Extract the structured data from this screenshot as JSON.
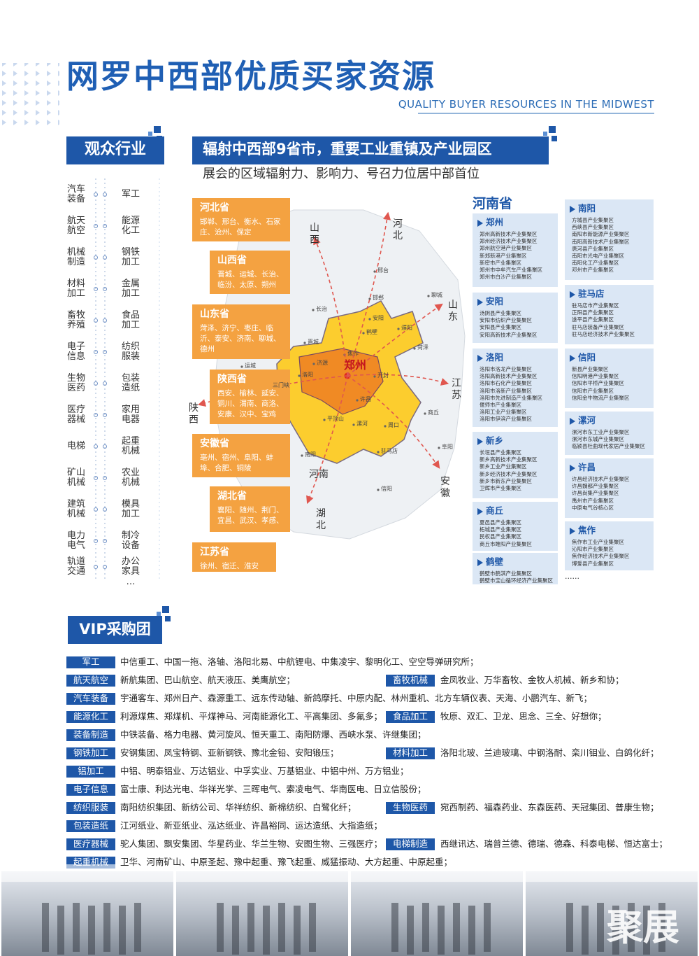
{
  "header": {
    "title": "网罗中西部优质买家资源",
    "subtitle": "QUALITY BUYER RESOURCES IN THE MIDWEST"
  },
  "industries": {
    "title": "观众行业",
    "left": [
      [
        "汽车",
        "装备"
      ],
      [
        "航天",
        "航空"
      ],
      [
        "机械",
        "制造"
      ],
      [
        "材料",
        "加工"
      ],
      [
        "畜牧",
        "养殖"
      ],
      [
        "电子",
        "信息"
      ],
      [
        "生物",
        "医药"
      ],
      [
        "医疗",
        "器械"
      ],
      [
        "电梯"
      ],
      [
        "矿山",
        "机械"
      ],
      [
        "建筑",
        "机械"
      ],
      [
        "电力",
        "电气"
      ],
      [
        "轨道",
        "交通"
      ]
    ],
    "right": [
      [
        "军工"
      ],
      [
        "能源",
        "化工"
      ],
      [
        "钢铁",
        "加工"
      ],
      [
        "金属",
        "加工"
      ],
      [
        "食品",
        "加工"
      ],
      [
        "纺织",
        "服装"
      ],
      [
        "包装",
        "造纸"
      ],
      [
        "家用",
        "电器"
      ],
      [
        "起重",
        "机械"
      ],
      [
        "农业",
        "机械"
      ],
      [
        "模具",
        "加工"
      ],
      [
        "制冷",
        "设备"
      ],
      [
        "办公",
        "家具",
        "…"
      ]
    ]
  },
  "map_section": {
    "title": "辐射中西部9省市，重要工业重镇及产业园区",
    "subtitle": "展会的区域辐射力、影响力、号召力位居中部首位",
    "provinces": [
      {
        "name": "河北省",
        "cities": "邯郸、邢台、衡水、石家庄、沧州、保定"
      },
      {
        "name": "山西省",
        "cities": "晋城、运城、长治、临汾、太原、朔州"
      },
      {
        "name": "山东省",
        "cities": "菏泽、济宁、枣庄、临沂、泰安、济南、聊城、德州"
      },
      {
        "name": "陕西省",
        "cities": "西安、榆林、延安、铜川、渭南、商洛、安康、汉中、宝鸡"
      },
      {
        "name": "安徽省",
        "cities": "亳州、宿州、阜阳、蚌埠、合肥、铜陵"
      },
      {
        "name": "湖北省",
        "cities": "襄阳、随州、荆门、宜昌、武汉、孝感、"
      },
      {
        "name": "江苏省",
        "cities": "徐州、宿迁、淮安"
      }
    ],
    "map": {
      "center": "郑州",
      "cities": [
        "邢台",
        "邯郸",
        "长治",
        "安阳",
        "鹤壁",
        "晋城",
        "濮阳",
        "菏泽",
        "聊城",
        "运城",
        "济源",
        "焦作",
        "洛阳",
        "开封",
        "许昌",
        "平顶山",
        "漯河",
        "周口",
        "商丘",
        "南阳",
        "驻马店",
        "信阳",
        "阜阳",
        "三门峡"
      ],
      "directions": [
        "山西",
        "河北",
        "山东",
        "江苏",
        "安徽",
        "湖北",
        "陕西"
      ],
      "province_label": "河南"
    },
    "henan": {
      "title": "河南省",
      "cities": [
        {
          "name": "郑州",
          "parks": [
            "郑州高新技术产业集聚区",
            "郑州经济技术产业集聚区",
            "郑州航空港产业集聚区",
            "新郑新港产业集聚区",
            "新密市产业集聚区",
            "郑州市中牟汽车产业集聚区",
            "郑州市白沙产业集聚区"
          ]
        },
        {
          "name": "安阳",
          "parks": [
            "汤阴县产业集聚区",
            "安阳市纺织产业集聚区",
            "安阳县产业集聚区",
            "安阳高新技术产业集聚区"
          ]
        },
        {
          "name": "洛阳",
          "parks": [
            "洛阳市洛龙产业集聚区",
            "洛阳高新技术产业集聚区",
            "洛阳市石化产业集聚区",
            "洛阳市洛新产业集聚区",
            "洛阳市先进制造产业集聚区",
            "偃师市产业集聚区",
            "洛阳工业产业集聚区",
            "洛阳市伊滨产业集聚区"
          ]
        },
        {
          "name": "新乡",
          "parks": [
            "长垣县产业集聚区",
            "新乡高新技术产业集聚区",
            "新乡工业产业集聚区",
            "新乡经济技术产业集聚区",
            "新乡市新东产业集聚区",
            "卫辉市产业集聚区"
          ]
        },
        {
          "name": "商丘",
          "parks": [
            "夏邑县产业集聚区",
            "柘城县产业集聚区",
            "民权县产业集聚区",
            "商丘市睢阳产业集聚区"
          ]
        },
        {
          "name": "鹤壁",
          "parks": [
            "鹤壁市鹤淇产业集聚区",
            "鹤壁市宝山循环经济产业集聚区"
          ]
        },
        {
          "name": "南阳",
          "parks": [
            "方城县产业集聚区",
            "西峡县产业集聚区",
            "南阳市新能源产业集聚区",
            "南阳高新技术产业集聚区",
            "唐河县产业集聚区",
            "南阳市光电产业集聚区",
            "南阳化工产业集聚区",
            "邓州市产业集聚区"
          ]
        },
        {
          "name": "驻马店",
          "parks": [
            "驻马店市产业集聚区",
            "正阳县产业集聚区",
            "遂平县产业集聚区",
            "驻马店装备产业集聚区",
            "驻马店经济技术产业集聚区"
          ]
        },
        {
          "name": "信阳",
          "parks": [
            "新县产业集聚区",
            "信阳明港产业集聚区",
            "信阳市平桥产业集聚区",
            "信阳市产业集聚区",
            "信阳金牛物流产业集聚区"
          ]
        },
        {
          "name": "漯河",
          "parks": [
            "漯河市东工业产业集聚区",
            "漯河市东城产业集聚区",
            "临颍县杜曲现代家居产业集聚区"
          ]
        },
        {
          "name": "许昌",
          "parks": [
            "许昌经济技术产业集聚区",
            "许昌魏都产业集聚区",
            "许昌尚集产业集聚区",
            "禹州市产业集聚区",
            "中原电气谷核心区"
          ]
        },
        {
          "name": "焦作",
          "parks": [
            "焦作市工业产业集聚区",
            "沁阳市产业集聚区",
            "焦作经济技术产业集聚区",
            "博爱县产业集聚区"
          ]
        }
      ],
      "more": "......"
    }
  },
  "vip": {
    "title": "VIP采购团",
    "rows": [
      [
        {
          "tag": "军工",
          "text": "中信重工、中国一拖、洛轴、洛阳北易、中航锂电、中集凌宇、黎明化工、空空导弹研究所；"
        }
      ],
      [
        {
          "tag": "航天航空",
          "text": "新航集团、巴山航空、航天液压、美鹰航空；"
        },
        {
          "tag": "畜牧机械",
          "text": "金凤牧业、万华畜牧、金牧人机械、新乡和协；"
        }
      ],
      [
        {
          "tag": "汽车装备",
          "text": "宇通客车、郑州日产、森源重工、远东传动轴、新鸽摩托、中原内配、林州重机、北方车辆仪表、天海、小鹏汽车、新飞；"
        }
      ],
      [
        {
          "tag": "能源化工",
          "text": "利源煤焦、郑煤机、平煤神马、河南能源化工、平高集团、多氟多；"
        },
        {
          "tag": "食品加工",
          "text": "牧原、双汇、卫龙、思念、三全、好想你；"
        }
      ],
      [
        {
          "tag": "装备制造",
          "text": "中铁装备、格力电器、黄河旋风、恒天重工、南阳防爆、西峡水泵、许继集团；"
        }
      ],
      [
        {
          "tag": "钢铁加工",
          "text": "安钢集团、凤宝特钢、亚新钢铁、豫北金铅、安阳锻压；"
        },
        {
          "tag": "材料加工",
          "text": "洛阳北玻、兰迪玻璃、中钢洛耐、栾川钼业、白鸽化纤；"
        }
      ],
      [
        {
          "tag": "铝加工",
          "text": "中铝、明泰铝业、万达铝业、中孚实业、万基铝业、中铝中州、万方铝业；"
        }
      ],
      [
        {
          "tag": "电子信息",
          "text": "富士康、利达光电、华祥光学、三晖电气、索凌电气、华南医电、日立信股份；"
        }
      ],
      [
        {
          "tag": "纺织服装",
          "text": "南阳纺织集团、新纺公司、华祥纺织、新棉纺织、白鹭化纤；"
        },
        {
          "tag": "生物医药",
          "text": "宛西制药、福森药业、东森医药、天冠集团、普康生物；"
        }
      ],
      [
        {
          "tag": "包装造纸",
          "text": "江河纸业、新亚纸业、泓达纸业、许昌裕同、运达造纸、大指造纸；"
        }
      ],
      [
        {
          "tag": "医疗器械",
          "text": "驼人集团、飘安集团、华星药业、华兰生物、安图生物、三强医疗；"
        },
        {
          "tag": "电梯制造",
          "text": "西继讯达、瑞普兰德、德瑞、德森、科泰电梯、恒达富士；"
        }
      ],
      [
        {
          "tag": "起重机械",
          "text": "卫华、河南矿山、中原圣起、豫中起重、豫飞起重、威猛振动、大方起重、中原起重；"
        }
      ]
    ]
  },
  "footer": {
    "watermark": "聚展"
  }
}
